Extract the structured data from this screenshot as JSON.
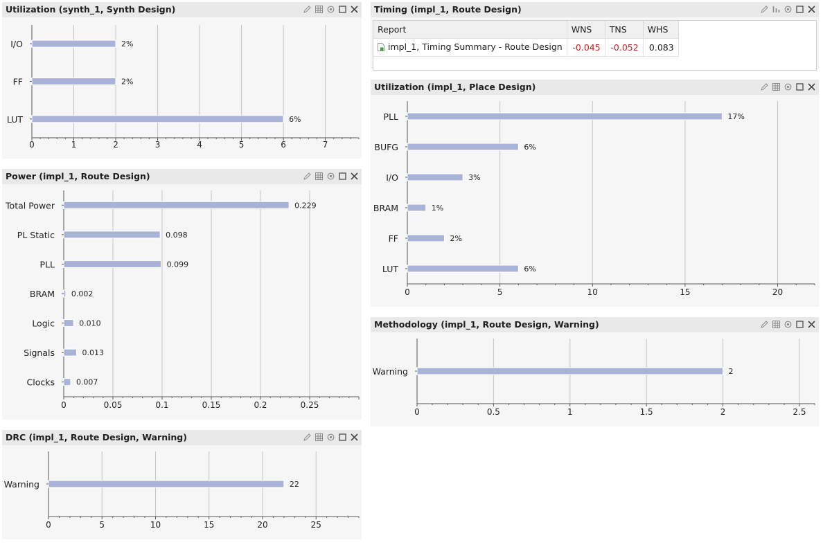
{
  "panels": {
    "util_synth": {
      "title": "Utilization (synth_1, Synth Design)",
      "chart_data": {
        "type": "bar",
        "orientation": "horizontal",
        "categories": [
          "I/O",
          "FF",
          "LUT"
        ],
        "values": [
          2,
          2,
          6
        ],
        "value_labels": [
          "2%",
          "2%",
          "6%"
        ],
        "xlim": [
          0,
          7.8
        ],
        "ticks": [
          0,
          1,
          2,
          3,
          4,
          5,
          6,
          7
        ],
        "tick_labels": [
          "0",
          "1",
          "2",
          "3",
          "4",
          "5",
          "6",
          "7"
        ],
        "grid": true
      }
    },
    "timing": {
      "title": "Timing (impl_1, Route Design)",
      "table": {
        "headers": [
          "Report",
          "WNS",
          "TNS",
          "WHS"
        ],
        "rows": [
          {
            "report": "impl_1, Timing Summary - Route Design",
            "wns": "-0.045",
            "tns": "-0.052",
            "whs": "0.083"
          }
        ]
      }
    },
    "power": {
      "title": "Power (impl_1, Route Design)",
      "chart_data": {
        "type": "bar",
        "orientation": "horizontal",
        "categories": [
          "Total Power",
          "PL Static",
          "PLL",
          "BRAM",
          "Logic",
          "Signals",
          "Clocks"
        ],
        "values": [
          0.229,
          0.098,
          0.099,
          0.002,
          0.01,
          0.013,
          0.007
        ],
        "value_labels": [
          "0.229",
          "0.098",
          "0.099",
          "0.002",
          "0.010",
          "0.013",
          "0.007"
        ],
        "xlim": [
          0,
          0.3
        ],
        "ticks": [
          0,
          0.05,
          0.1,
          0.15,
          0.2,
          0.25
        ],
        "tick_labels": [
          "0",
          "0.05",
          "0.1",
          "0.15",
          "0.2",
          "0.25"
        ],
        "grid": true
      }
    },
    "util_place": {
      "title": "Utilization (impl_1, Place Design)",
      "chart_data": {
        "type": "bar",
        "orientation": "horizontal",
        "categories": [
          "PLL",
          "BUFG",
          "I/O",
          "BRAM",
          "FF",
          "LUT"
        ],
        "values": [
          17,
          6,
          3,
          1,
          2,
          6
        ],
        "value_labels": [
          "17%",
          "6%",
          "3%",
          "1%",
          "2%",
          "6%"
        ],
        "xlim": [
          0,
          22
        ],
        "ticks": [
          0,
          5,
          10,
          15,
          20
        ],
        "tick_labels": [
          "0",
          "5",
          "10",
          "15",
          "20"
        ],
        "grid": true
      }
    },
    "methodology": {
      "title": "Methodology (impl_1, Route Design, Warning)",
      "chart_data": {
        "type": "bar",
        "orientation": "horizontal",
        "categories": [
          "Warning"
        ],
        "values": [
          2
        ],
        "value_labels": [
          "2"
        ],
        "xlim": [
          0,
          2.6
        ],
        "ticks": [
          0,
          0.5,
          1,
          1.5,
          2,
          2.5
        ],
        "tick_labels": [
          "0",
          "0.5",
          "1",
          "1.5",
          "2",
          "2.5"
        ],
        "grid": true
      }
    },
    "drc": {
      "title": "DRC (impl_1, Route Design, Warning)",
      "chart_data": {
        "type": "bar",
        "orientation": "horizontal",
        "categories": [
          "Warning"
        ],
        "values": [
          22
        ],
        "value_labels": [
          "22"
        ],
        "xlim": [
          0,
          29
        ],
        "ticks": [
          0,
          5,
          10,
          15,
          20,
          25
        ],
        "tick_labels": [
          "0",
          "5",
          "10",
          "15",
          "20",
          "25"
        ],
        "grid": true
      }
    }
  },
  "colors": {
    "bar": "#a9b3d8",
    "grid": "#c4c4c4",
    "axis": "#555555",
    "negative": "#cc1f1f",
    "header_bg": "#e9e9e9",
    "panel_bg": "#f6f6f6"
  },
  "icons": {
    "edit": "pencil-icon",
    "grid": "grid-icon",
    "chart": "bar-chart-icon",
    "settings": "gear-icon",
    "maximize": "maximize-icon",
    "close": "close-icon"
  }
}
